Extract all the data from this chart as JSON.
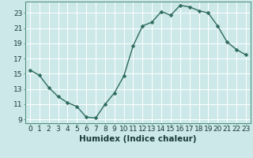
{
  "x": [
    0,
    1,
    2,
    3,
    4,
    5,
    6,
    7,
    8,
    9,
    10,
    11,
    12,
    13,
    14,
    15,
    16,
    17,
    18,
    19,
    20,
    21,
    22,
    23
  ],
  "y": [
    15.5,
    14.8,
    13.2,
    12.0,
    11.2,
    10.7,
    9.3,
    9.2,
    11.0,
    12.5,
    14.7,
    18.7,
    21.3,
    21.8,
    23.2,
    22.7,
    24.0,
    23.8,
    23.3,
    23.0,
    21.3,
    19.2,
    18.2,
    17.5
  ],
  "line_color": "#2e6b5e",
  "marker": "D",
  "marker_size": 2.5,
  "background_color": "#cce8e8",
  "grid_color": "#ffffff",
  "xlabel": "Humidex (Indice chaleur)",
  "xlim": [
    -0.5,
    23.5
  ],
  "ylim": [
    8.5,
    24.5
  ],
  "yticks": [
    9,
    11,
    13,
    15,
    17,
    19,
    21,
    23
  ],
  "xticks": [
    0,
    1,
    2,
    3,
    4,
    5,
    6,
    7,
    8,
    9,
    10,
    11,
    12,
    13,
    14,
    15,
    16,
    17,
    18,
    19,
    20,
    21,
    22,
    23
  ],
  "tick_fontsize": 6.5,
  "xlabel_fontsize": 7.5,
  "line_width": 1.0
}
